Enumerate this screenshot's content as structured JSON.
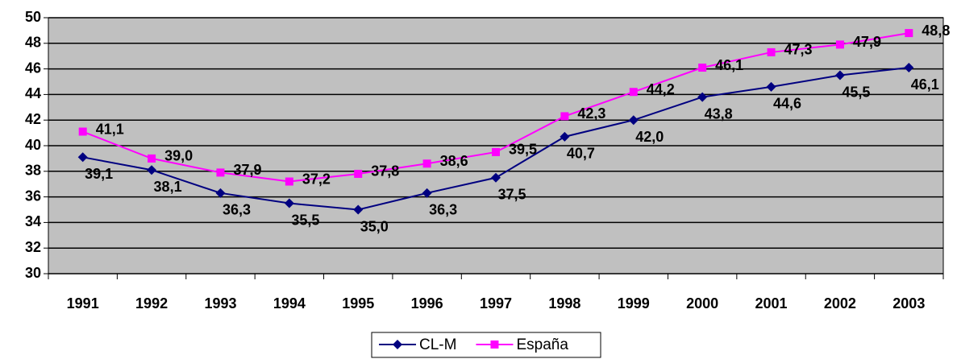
{
  "chart_data": {
    "type": "line",
    "categories": [
      "1991",
      "1992",
      "1993",
      "1994",
      "1995",
      "1996",
      "1997",
      "1998",
      "1999",
      "2000",
      "2001",
      "2002",
      "2003"
    ],
    "series": [
      {
        "name": "CL-M",
        "color": "#000080",
        "values": [
          39.1,
          38.1,
          36.3,
          35.5,
          35.0,
          36.3,
          37.5,
          40.7,
          42.0,
          43.8,
          44.6,
          45.5,
          46.1
        ],
        "value_labels": [
          "39,1",
          "38,1",
          "36,3",
          "35,5",
          "35,0",
          "36,3",
          "37,5",
          "40,7",
          "42,0",
          "43,8",
          "44,6",
          "45,5",
          "46,1"
        ]
      },
      {
        "name": "España",
        "color": "#ff00ff",
        "values": [
          41.1,
          39.0,
          37.9,
          37.2,
          37.8,
          38.6,
          39.5,
          42.3,
          44.2,
          46.1,
          47.3,
          47.9,
          48.8
        ],
        "value_labels": [
          "41,1",
          "39,0",
          "37,9",
          "37,2",
          "37,8",
          "38,6",
          "39,5",
          "42,3",
          "44,2",
          "46,1",
          "47,3",
          "47,9",
          "48,8"
        ]
      }
    ],
    "ylim": [
      30,
      50
    ],
    "yticks": [
      30,
      32,
      34,
      36,
      38,
      40,
      42,
      44,
      46,
      48,
      50
    ],
    "grid": true,
    "legend": "bottom"
  }
}
